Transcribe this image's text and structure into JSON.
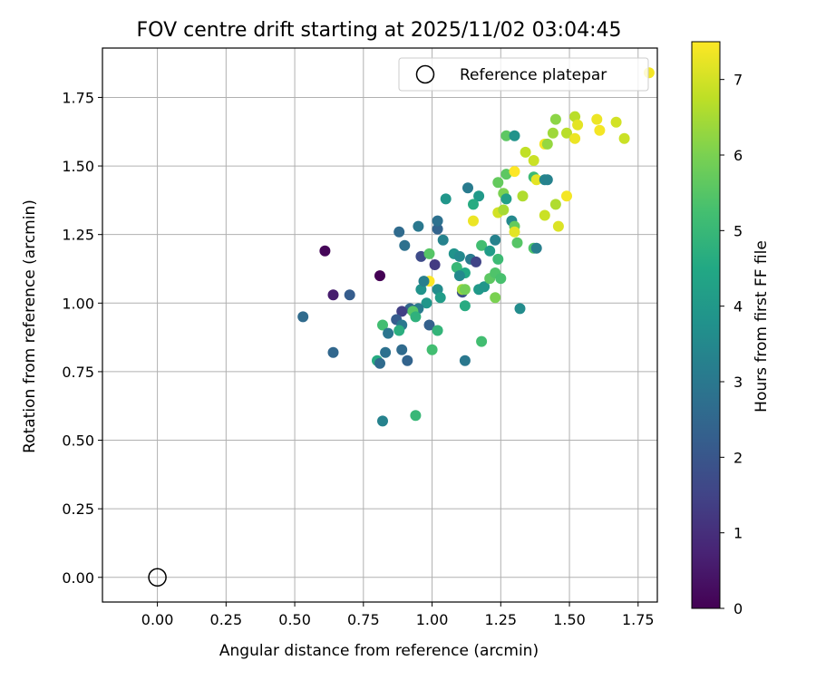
{
  "chart_data": {
    "type": "scatter",
    "title": "FOV centre drift starting at 2025/11/02 03:04:45",
    "xlabel": "Angular distance from reference (arcmin)",
    "ylabel": "Rotation from reference (arcmin)",
    "xlim": [
      -0.2,
      1.82
    ],
    "ylim": [
      -0.09,
      1.93
    ],
    "x_ticks": [
      0.0,
      0.25,
      0.5,
      0.75,
      1.0,
      1.25,
      1.5,
      1.75
    ],
    "x_tick_labels": [
      "0.00",
      "0.25",
      "0.50",
      "0.75",
      "1.00",
      "1.25",
      "1.50",
      "1.75"
    ],
    "y_ticks": [
      0.0,
      0.25,
      0.5,
      0.75,
      1.0,
      1.25,
      1.5,
      1.75
    ],
    "y_tick_labels": [
      "0.00",
      "0.25",
      "0.50",
      "0.75",
      "1.00",
      "1.25",
      "1.50",
      "1.75"
    ],
    "grid": true,
    "colormap": "viridis",
    "colorbar": {
      "label": "Hours from first FF file",
      "range": [
        0,
        7.5
      ],
      "ticks": [
        0,
        1,
        2,
        3,
        4,
        5,
        6,
        7
      ],
      "tick_labels": [
        "0",
        "1",
        "2",
        "3",
        "4",
        "5",
        "6",
        "7"
      ]
    },
    "legend": {
      "location": "top-right",
      "entries": [
        "Reference platepar"
      ]
    },
    "reference_point": {
      "x": 0.0,
      "y": 0.0,
      "marker": "hollow-circle"
    },
    "series": [
      {
        "points": [
          {
            "x": 0.61,
            "y": 1.19,
            "c": 0.1
          },
          {
            "x": 0.81,
            "y": 1.1,
            "c": 0.0
          },
          {
            "x": 0.64,
            "y": 1.03,
            "c": 0.6
          },
          {
            "x": 0.7,
            "y": 1.03,
            "c": 2.2
          },
          {
            "x": 0.53,
            "y": 0.95,
            "c": 2.6
          },
          {
            "x": 0.64,
            "y": 0.82,
            "c": 2.5
          },
          {
            "x": 0.88,
            "y": 1.26,
            "c": 2.6
          },
          {
            "x": 0.9,
            "y": 1.21,
            "c": 2.8
          },
          {
            "x": 0.95,
            "y": 1.28,
            "c": 3.0
          },
          {
            "x": 0.96,
            "y": 1.17,
            "c": 1.7
          },
          {
            "x": 0.99,
            "y": 1.18,
            "c": 5.5
          },
          {
            "x": 1.01,
            "y": 1.14,
            "c": 1.3
          },
          {
            "x": 1.02,
            "y": 1.27,
            "c": 2.4
          },
          {
            "x": 1.02,
            "y": 1.3,
            "c": 2.8
          },
          {
            "x": 1.04,
            "y": 1.23,
            "c": 3.3
          },
          {
            "x": 1.05,
            "y": 1.38,
            "c": 3.9
          },
          {
            "x": 1.13,
            "y": 1.42,
            "c": 3.1
          },
          {
            "x": 1.17,
            "y": 1.39,
            "c": 4.0
          },
          {
            "x": 1.15,
            "y": 1.36,
            "c": 4.6
          },
          {
            "x": 1.08,
            "y": 1.18,
            "c": 3.8
          },
          {
            "x": 1.1,
            "y": 1.17,
            "c": 3.5
          },
          {
            "x": 1.14,
            "y": 1.16,
            "c": 3.1
          },
          {
            "x": 1.16,
            "y": 1.15,
            "c": 1.5
          },
          {
            "x": 1.18,
            "y": 1.21,
            "c": 5.2
          },
          {
            "x": 1.21,
            "y": 1.19,
            "c": 4.1
          },
          {
            "x": 1.23,
            "y": 1.23,
            "c": 3.3
          },
          {
            "x": 1.24,
            "y": 1.16,
            "c": 5.1
          },
          {
            "x": 1.09,
            "y": 1.13,
            "c": 5.0
          },
          {
            "x": 1.12,
            "y": 1.11,
            "c": 4.5
          },
          {
            "x": 1.1,
            "y": 1.1,
            "c": 3.5
          },
          {
            "x": 1.11,
            "y": 1.04,
            "c": 1.8
          },
          {
            "x": 1.11,
            "y": 1.05,
            "c": 6.4
          },
          {
            "x": 1.12,
            "y": 1.05,
            "c": 5.9
          },
          {
            "x": 0.99,
            "y": 1.08,
            "c": 7.5
          },
          {
            "x": 0.96,
            "y": 1.05,
            "c": 3.8
          },
          {
            "x": 0.97,
            "y": 1.08,
            "c": 3.2
          },
          {
            "x": 1.02,
            "y": 1.05,
            "c": 3.6
          },
          {
            "x": 1.03,
            "y": 1.02,
            "c": 4.1
          },
          {
            "x": 0.98,
            "y": 1.0,
            "c": 3.9
          },
          {
            "x": 0.95,
            "y": 0.98,
            "c": 3.1
          },
          {
            "x": 0.92,
            "y": 0.98,
            "c": 2.5
          },
          {
            "x": 0.89,
            "y": 0.97,
            "c": 1.4
          },
          {
            "x": 0.93,
            "y": 0.97,
            "c": 5.5
          },
          {
            "x": 0.94,
            "y": 0.95,
            "c": 4.8
          },
          {
            "x": 0.87,
            "y": 0.94,
            "c": 2.2
          },
          {
            "x": 0.89,
            "y": 0.92,
            "c": 3.0
          },
          {
            "x": 0.82,
            "y": 0.92,
            "c": 5.2
          },
          {
            "x": 0.84,
            "y": 0.89,
            "c": 2.9
          },
          {
            "x": 0.88,
            "y": 0.9,
            "c": 4.7
          },
          {
            "x": 0.99,
            "y": 0.92,
            "c": 2.3
          },
          {
            "x": 1.02,
            "y": 0.9,
            "c": 4.9
          },
          {
            "x": 1.12,
            "y": 0.99,
            "c": 4.6
          },
          {
            "x": 0.89,
            "y": 0.83,
            "c": 2.6
          },
          {
            "x": 0.83,
            "y": 0.82,
            "c": 2.8
          },
          {
            "x": 0.8,
            "y": 0.79,
            "c": 4.6
          },
          {
            "x": 0.81,
            "y": 0.78,
            "c": 2.6
          },
          {
            "x": 0.91,
            "y": 0.79,
            "c": 2.4
          },
          {
            "x": 1.0,
            "y": 0.83,
            "c": 5.2
          },
          {
            "x": 1.12,
            "y": 0.79,
            "c": 3.0
          },
          {
            "x": 1.18,
            "y": 0.86,
            "c": 5.2
          },
          {
            "x": 0.82,
            "y": 0.57,
            "c": 3.3
          },
          {
            "x": 0.94,
            "y": 0.59,
            "c": 5.0
          },
          {
            "x": 1.17,
            "y": 1.05,
            "c": 4.0
          },
          {
            "x": 1.19,
            "y": 1.06,
            "c": 3.9
          },
          {
            "x": 1.21,
            "y": 1.09,
            "c": 5.6
          },
          {
            "x": 1.23,
            "y": 1.11,
            "c": 5.4
          },
          {
            "x": 1.25,
            "y": 1.09,
            "c": 5.3
          },
          {
            "x": 1.23,
            "y": 1.02,
            "c": 6.0
          },
          {
            "x": 1.32,
            "y": 0.98,
            "c": 3.6
          },
          {
            "x": 1.27,
            "y": 1.61,
            "c": 5.6
          },
          {
            "x": 1.3,
            "y": 1.61,
            "c": 3.8
          },
          {
            "x": 1.27,
            "y": 1.47,
            "c": 5.6
          },
          {
            "x": 1.24,
            "y": 1.44,
            "c": 5.7
          },
          {
            "x": 1.26,
            "y": 1.4,
            "c": 6.0
          },
          {
            "x": 1.27,
            "y": 1.38,
            "c": 4.2
          },
          {
            "x": 1.24,
            "y": 1.33,
            "c": 7.0
          },
          {
            "x": 1.26,
            "y": 1.34,
            "c": 6.5
          },
          {
            "x": 1.29,
            "y": 1.3,
            "c": 3.5
          },
          {
            "x": 1.3,
            "y": 1.28,
            "c": 5.7
          },
          {
            "x": 1.3,
            "y": 1.26,
            "c": 7.2
          },
          {
            "x": 1.31,
            "y": 1.22,
            "c": 5.5
          },
          {
            "x": 1.15,
            "y": 1.3,
            "c": 7.3
          },
          {
            "x": 1.3,
            "y": 1.48,
            "c": 7.5
          },
          {
            "x": 1.34,
            "y": 1.55,
            "c": 6.8
          },
          {
            "x": 1.37,
            "y": 1.52,
            "c": 6.9
          },
          {
            "x": 1.37,
            "y": 1.46,
            "c": 5.1
          },
          {
            "x": 1.38,
            "y": 1.45,
            "c": 7.2
          },
          {
            "x": 1.33,
            "y": 1.39,
            "c": 6.6
          },
          {
            "x": 1.37,
            "y": 1.2,
            "c": 5.4
          },
          {
            "x": 1.38,
            "y": 1.2,
            "c": 3.2
          },
          {
            "x": 1.41,
            "y": 1.58,
            "c": 7.4
          },
          {
            "x": 1.42,
            "y": 1.58,
            "c": 6.3
          },
          {
            "x": 1.41,
            "y": 1.45,
            "c": 3.4
          },
          {
            "x": 1.42,
            "y": 1.45,
            "c": 3.3
          },
          {
            "x": 1.44,
            "y": 1.62,
            "c": 6.4
          },
          {
            "x": 1.45,
            "y": 1.67,
            "c": 6.2
          },
          {
            "x": 1.45,
            "y": 1.36,
            "c": 6.6
          },
          {
            "x": 1.41,
            "y": 1.32,
            "c": 6.9
          },
          {
            "x": 1.46,
            "y": 1.28,
            "c": 7.1
          },
          {
            "x": 1.49,
            "y": 1.62,
            "c": 6.7
          },
          {
            "x": 1.52,
            "y": 1.6,
            "c": 7.3
          },
          {
            "x": 1.52,
            "y": 1.68,
            "c": 6.7
          },
          {
            "x": 1.53,
            "y": 1.65,
            "c": 7.2
          },
          {
            "x": 1.49,
            "y": 1.39,
            "c": 7.4
          },
          {
            "x": 1.6,
            "y": 1.67,
            "c": 7.3
          },
          {
            "x": 1.61,
            "y": 1.63,
            "c": 7.4
          },
          {
            "x": 1.67,
            "y": 1.66,
            "c": 7.0
          },
          {
            "x": 1.7,
            "y": 1.6,
            "c": 6.9
          },
          {
            "x": 1.79,
            "y": 1.84,
            "c": 7.4
          }
        ]
      }
    ]
  }
}
